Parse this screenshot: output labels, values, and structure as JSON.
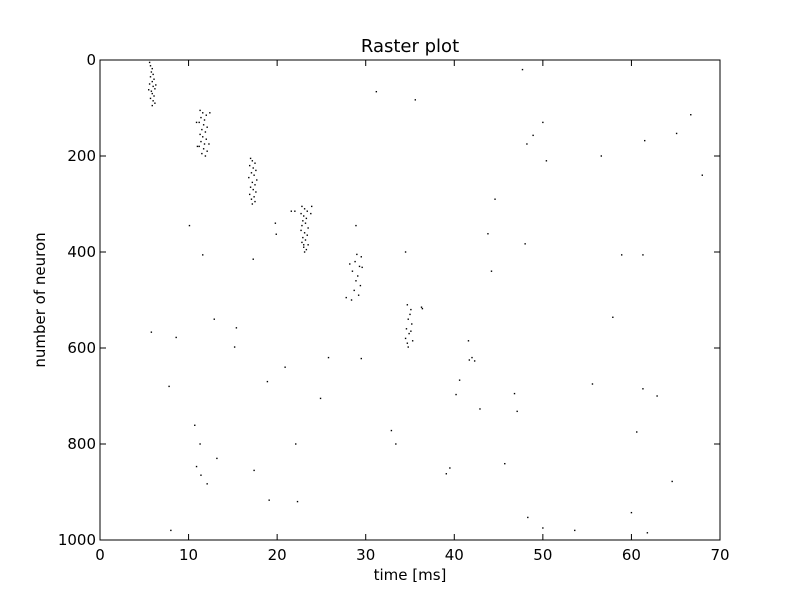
{
  "chart_data": {
    "type": "scatter",
    "title": "Raster plot",
    "xlabel": "time [ms]",
    "ylabel": "number of neuron",
    "xlim": [
      0,
      70
    ],
    "ylim": [
      1000,
      0
    ],
    "y_inverted": true,
    "grid": false,
    "marker_color": "#000000",
    "xticks": [
      0,
      10,
      20,
      30,
      40,
      50,
      60,
      70
    ],
    "yticks": [
      0,
      200,
      400,
      600,
      800,
      1000
    ],
    "series": [
      {
        "points": [
          [
            5.6,
            5
          ],
          [
            5.7,
            12
          ],
          [
            5.9,
            18
          ],
          [
            5.8,
            25
          ],
          [
            6.0,
            30
          ],
          [
            5.7,
            35
          ],
          [
            6.1,
            40
          ],
          [
            5.9,
            45
          ],
          [
            5.6,
            50
          ],
          [
            6.0,
            55
          ],
          [
            6.2,
            60
          ],
          [
            5.8,
            65
          ],
          [
            5.9,
            70
          ],
          [
            6.1,
            75
          ],
          [
            5.7,
            80
          ],
          [
            6.0,
            85
          ],
          [
            6.2,
            90
          ],
          [
            5.9,
            95
          ],
          [
            6.3,
            52
          ],
          [
            5.5,
            62
          ],
          [
            11.3,
            105
          ],
          [
            11.6,
            110
          ],
          [
            12.0,
            115
          ],
          [
            11.4,
            120
          ],
          [
            11.8,
            125
          ],
          [
            11.2,
            130
          ],
          [
            11.7,
            135
          ],
          [
            12.1,
            140
          ],
          [
            11.5,
            145
          ],
          [
            11.9,
            150
          ],
          [
            11.3,
            155
          ],
          [
            11.6,
            160
          ],
          [
            12.0,
            165
          ],
          [
            11.4,
            170
          ],
          [
            11.8,
            175
          ],
          [
            11.2,
            180
          ],
          [
            11.7,
            185
          ],
          [
            12.1,
            190
          ],
          [
            11.5,
            195
          ],
          [
            11.9,
            200
          ],
          [
            10.9,
            130
          ],
          [
            12.4,
            110
          ],
          [
            12.3,
            175
          ],
          [
            11.0,
            180
          ],
          [
            17.0,
            205
          ],
          [
            17.2,
            210
          ],
          [
            17.5,
            215
          ],
          [
            16.9,
            220
          ],
          [
            17.3,
            225
          ],
          [
            17.6,
            230
          ],
          [
            17.1,
            235
          ],
          [
            17.4,
            240
          ],
          [
            16.8,
            245
          ],
          [
            17.7,
            250
          ],
          [
            17.2,
            255
          ],
          [
            17.5,
            260
          ],
          [
            17.0,
            265
          ],
          [
            17.3,
            270
          ],
          [
            17.6,
            275
          ],
          [
            16.9,
            280
          ],
          [
            17.4,
            285
          ],
          [
            17.1,
            290
          ],
          [
            17.5,
            295
          ],
          [
            17.2,
            300
          ],
          [
            22.8,
            305
          ],
          [
            23.1,
            310
          ],
          [
            23.4,
            315
          ],
          [
            22.7,
            320
          ],
          [
            23.0,
            325
          ],
          [
            23.3,
            330
          ],
          [
            22.9,
            335
          ],
          [
            23.2,
            340
          ],
          [
            22.8,
            345
          ],
          [
            23.5,
            350
          ],
          [
            22.7,
            355
          ],
          [
            23.1,
            360
          ],
          [
            23.4,
            365
          ],
          [
            22.9,
            370
          ],
          [
            23.2,
            375
          ],
          [
            22.8,
            380
          ],
          [
            23.5,
            385
          ],
          [
            23.0,
            390
          ],
          [
            23.3,
            395
          ],
          [
            23.1,
            400
          ],
          [
            23.9,
            305
          ],
          [
            22.0,
            315
          ],
          [
            23.8,
            320
          ],
          [
            29.0,
            405
          ],
          [
            29.5,
            410
          ],
          [
            28.8,
            420
          ],
          [
            29.3,
            430
          ],
          [
            28.5,
            440
          ],
          [
            29.1,
            450
          ],
          [
            28.9,
            460
          ],
          [
            29.4,
            470
          ],
          [
            28.7,
            480
          ],
          [
            29.2,
            490
          ],
          [
            28.4,
            500
          ],
          [
            27.8,
            495
          ],
          [
            28.2,
            425
          ],
          [
            29.6,
            432
          ],
          [
            34.7,
            510
          ],
          [
            35.1,
            520
          ],
          [
            35.0,
            530
          ],
          [
            34.8,
            540
          ],
          [
            35.2,
            550
          ],
          [
            34.6,
            560
          ],
          [
            35.1,
            565
          ],
          [
            34.9,
            570
          ],
          [
            34.5,
            580
          ],
          [
            34.7,
            590
          ],
          [
            35.3,
            585
          ],
          [
            36.3,
            515
          ],
          [
            34.8,
            598
          ],
          [
            5.8,
            567
          ],
          [
            7.8,
            680
          ],
          [
            8.0,
            980
          ],
          [
            8.6,
            578
          ],
          [
            10.1,
            345
          ],
          [
            10.7,
            761
          ],
          [
            10.9,
            847
          ],
          [
            11.3,
            800
          ],
          [
            11.4,
            865
          ],
          [
            11.6,
            406
          ],
          [
            12.1,
            883
          ],
          [
            12.9,
            540
          ],
          [
            13.2,
            830
          ],
          [
            15.2,
            598
          ],
          [
            15.4,
            558
          ],
          [
            17.3,
            415
          ],
          [
            17.4,
            855
          ],
          [
            18.9,
            670
          ],
          [
            19.1,
            917
          ],
          [
            19.8,
            340
          ],
          [
            19.9,
            363
          ],
          [
            20.9,
            640
          ],
          [
            21.6,
            315
          ],
          [
            22.1,
            800
          ],
          [
            22.3,
            920
          ],
          [
            24.9,
            705
          ],
          [
            25.8,
            620
          ],
          [
            29.5,
            622
          ],
          [
            31.2,
            66
          ],
          [
            32.9,
            772
          ],
          [
            33.4,
            800
          ],
          [
            34.5,
            400
          ],
          [
            35.6,
            83
          ],
          [
            36.4,
            518
          ],
          [
            39.1,
            862
          ],
          [
            39.5,
            850
          ],
          [
            40.2,
            697
          ],
          [
            40.6,
            667
          ],
          [
            41.6,
            585
          ],
          [
            41.7,
            625
          ],
          [
            42.0,
            620
          ],
          [
            42.3,
            627
          ],
          [
            42.9,
            727
          ],
          [
            43.8,
            362
          ],
          [
            44.2,
            440
          ],
          [
            44.6,
            290
          ],
          [
            45.7,
            841
          ],
          [
            46.8,
            695
          ],
          [
            47.1,
            732
          ],
          [
            47.7,
            20
          ],
          [
            48.2,
            175
          ],
          [
            48.3,
            953
          ],
          [
            48.9,
            157
          ],
          [
            50.0,
            975
          ],
          [
            50.0,
            130
          ],
          [
            50.4,
            210
          ],
          [
            53.6,
            980
          ],
          [
            55.6,
            675
          ],
          [
            56.6,
            200
          ],
          [
            57.9,
            536
          ],
          [
            58.9,
            406
          ],
          [
            60.0,
            943
          ],
          [
            60.6,
            775
          ],
          [
            61.3,
            406
          ],
          [
            61.3,
            685
          ],
          [
            61.5,
            168
          ],
          [
            61.8,
            985
          ],
          [
            62.9,
            700
          ],
          [
            64.6,
            878
          ],
          [
            65.1,
            153
          ],
          [
            66.7,
            114
          ],
          [
            68.0,
            240
          ],
          [
            48.0,
            383
          ],
          [
            28.9,
            345
          ],
          [
            23.0,
            385
          ]
        ]
      }
    ]
  }
}
